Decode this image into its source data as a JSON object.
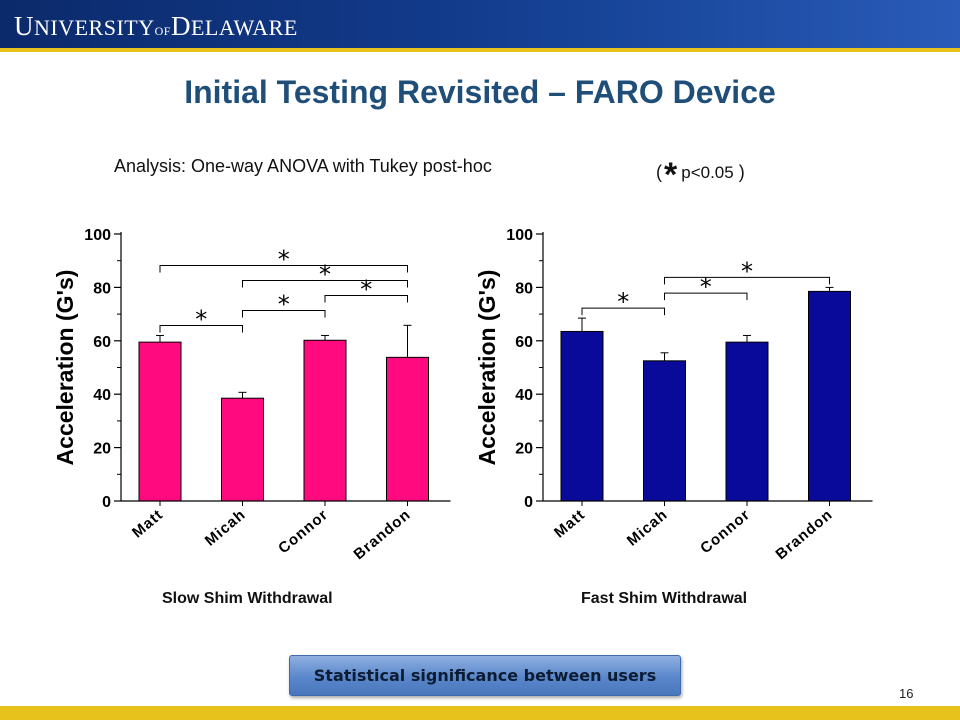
{
  "header": {
    "logo_big1": "U",
    "logo_rest1": "NIVERSITY",
    "logo_of": "OF",
    "logo_big2": "D",
    "logo_rest2": "ELAWARE"
  },
  "title": "Initial Testing Revisited – FARO Device",
  "analysis_text": "Analysis: One-way ANOVA with Tukey post-hoc",
  "legend_note": {
    "open": "(",
    "star": "*",
    "text": "p<0.05",
    "close": ")"
  },
  "colors": {
    "slow_bar": "#ff0a7f",
    "fast_bar": "#0a0a9a",
    "title": "#1f4e79",
    "gold": "#e8c21c"
  },
  "chart_data": [
    {
      "type": "bar",
      "title": "Slow Shim Withdrawal",
      "categories": [
        "Matt",
        "Micah",
        "Connor",
        "Brandon"
      ],
      "values": [
        59.5,
        38.5,
        60.2,
        53.8
      ],
      "errors": [
        2.5,
        2.2,
        1.8,
        12
      ],
      "ylabel": "Acceleration (G's)",
      "ylim": [
        0,
        100
      ],
      "yticks": [
        0,
        20,
        40,
        60,
        80,
        100
      ],
      "color": "#ff0a7f",
      "significance": [
        {
          "from": 0,
          "to": 1,
          "label": "*"
        },
        {
          "from": 0,
          "to": 3,
          "label": "*"
        },
        {
          "from": 1,
          "to": 2,
          "label": "*"
        },
        {
          "from": 1,
          "to": 3,
          "label": "*"
        },
        {
          "from": 2,
          "to": 3,
          "label": "*"
        }
      ]
    },
    {
      "type": "bar",
      "title": "Fast Shim Withdrawal",
      "categories": [
        "Matt",
        "Micah",
        "Connor",
        "Brandon"
      ],
      "values": [
        63.5,
        52.5,
        59.5,
        78.5
      ],
      "errors": [
        5,
        3,
        2.5,
        1.5
      ],
      "ylabel": "Acceleration (G's)",
      "ylim": [
        0,
        100
      ],
      "yticks": [
        0,
        20,
        40,
        60,
        80,
        100
      ],
      "color": "#0a0a9a",
      "significance": [
        {
          "from": 0,
          "to": 1,
          "label": "*"
        },
        {
          "from": 1,
          "to": 2,
          "label": "*"
        },
        {
          "from": 1,
          "to": 3,
          "label": "*"
        }
      ]
    }
  ],
  "significance_button": "Statistical significance between users",
  "page_number": "16"
}
